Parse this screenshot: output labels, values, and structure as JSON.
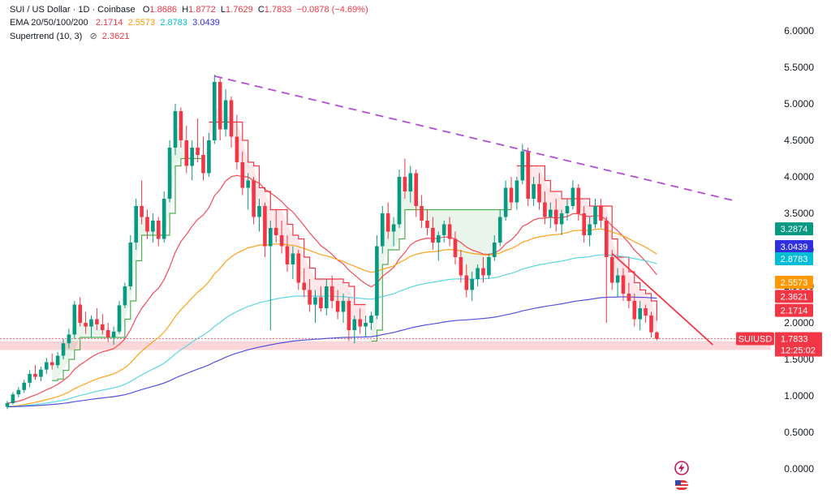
{
  "header": {
    "line1": {
      "symbol": "SUI / US Dollar · 1D · Coinbase",
      "o_label": "O",
      "o_value": "1.8686",
      "h_label": "H",
      "h_value": "1.8772",
      "l_label": "L",
      "l_value": "1.7629",
      "c_label": "C",
      "c_value": "1.7833",
      "change": "−0.0878 (−4.69%)"
    },
    "line2": {
      "label": "EMA 20/50/100/200",
      "ema20": "2.1714",
      "ema50": "2.5573",
      "ema100": "2.8783",
      "ema200": "3.0439"
    },
    "line3": {
      "label": "Supertrend (10, 3)",
      "icon": "hidden-eye-icon",
      "value": "2.3621"
    }
  },
  "colors": {
    "ema20": "#f23645",
    "ema50": "#ff9800",
    "ema100": "#4dd0e1",
    "ema200": "#3f3fd8",
    "up": "#089981",
    "down": "#f23645",
    "supertrend_up": "#4caf50",
    "supertrend_down": "#f23645",
    "trendline_dashed": "#b04fd8",
    "trendline_red": "#f23645",
    "highlight_band": "#fcd3d6"
  },
  "price_axis": {
    "ticks": [
      "6.0000",
      "5.5000",
      "5.0000",
      "4.5000",
      "4.0000",
      "3.5000",
      "3.0000",
      "2.5000",
      "2.0000",
      "1.5000",
      "1.0000",
      "0.5000",
      "0.0000"
    ]
  },
  "price_labels": [
    {
      "id": "label-3-2874",
      "text": "3.2874",
      "color": "#089981",
      "value": 3.2874
    },
    {
      "id": "label-ema200",
      "text": "3.0439",
      "color": "#2f2fe0",
      "value": 3.0439
    },
    {
      "id": "label-ema100",
      "text": "2.8783",
      "color": "#00bcd4",
      "value": 2.8783
    },
    {
      "id": "label-ema50",
      "text": "2.5573",
      "color": "#ff9800",
      "value": 2.5573
    },
    {
      "id": "label-supertrend",
      "text": "2.3621",
      "color": "#f23645",
      "value": 2.3621
    },
    {
      "id": "label-ema20",
      "text": "2.1714",
      "color": "#f23645",
      "value": 2.1714
    }
  ],
  "last_price": {
    "symbol": "SUIUSD",
    "price": "1.7833",
    "countdown": "12:25:02",
    "value": 1.7833
  },
  "bottom_icons": [
    "lightning-icon",
    "flag-icon"
  ],
  "chart_data": {
    "type": "candlestick",
    "title": "SUI / US Dollar · 1D · Coinbase",
    "ylim": [
      0,
      6
    ],
    "grid": false,
    "candles": [
      [
        0.85,
        0.93,
        0.82,
        0.9
      ],
      [
        0.9,
        1.05,
        0.88,
        1.02
      ],
      [
        1.02,
        1.12,
        0.98,
        1.08
      ],
      [
        1.08,
        1.22,
        1.04,
        1.18
      ],
      [
        1.18,
        1.35,
        1.12,
        1.3
      ],
      [
        1.3,
        1.42,
        1.22,
        1.26
      ],
      [
        1.26,
        1.4,
        1.2,
        1.36
      ],
      [
        1.36,
        1.52,
        1.3,
        1.46
      ],
      [
        1.46,
        1.58,
        1.36,
        1.42
      ],
      [
        1.42,
        1.6,
        1.38,
        1.55
      ],
      [
        1.55,
        1.78,
        1.5,
        1.72
      ],
      [
        1.72,
        1.92,
        1.65,
        1.84
      ],
      [
        1.84,
        2.3,
        1.78,
        2.25
      ],
      [
        2.25,
        2.35,
        1.95,
        2.0
      ],
      [
        2.0,
        2.15,
        1.85,
        1.95
      ],
      [
        1.95,
        2.1,
        1.8,
        2.05
      ],
      [
        2.05,
        2.2,
        1.9,
        1.98
      ],
      [
        1.98,
        2.12,
        1.84,
        1.9
      ],
      [
        1.9,
        2.0,
        1.74,
        1.8
      ],
      [
        1.8,
        1.95,
        1.7,
        1.88
      ],
      [
        1.88,
        2.3,
        1.85,
        2.24
      ],
      [
        2.24,
        2.55,
        2.2,
        2.5
      ],
      [
        2.5,
        3.2,
        2.45,
        3.1
      ],
      [
        3.1,
        3.7,
        3.0,
        3.6
      ],
      [
        3.6,
        3.95,
        3.35,
        3.45
      ],
      [
        3.45,
        3.55,
        3.15,
        3.25
      ],
      [
        3.25,
        3.5,
        3.1,
        3.4
      ],
      [
        3.4,
        3.45,
        3.05,
        3.15
      ],
      [
        3.15,
        3.8,
        3.1,
        3.7
      ],
      [
        3.7,
        4.5,
        3.65,
        4.4
      ],
      [
        4.4,
        5.0,
        4.3,
        4.9
      ],
      [
        4.9,
        4.95,
        4.4,
        4.5
      ],
      [
        4.5,
        4.7,
        4.05,
        4.15
      ],
      [
        4.15,
        4.5,
        3.95,
        4.4
      ],
      [
        4.4,
        4.8,
        4.2,
        4.3
      ],
      [
        4.3,
        4.55,
        3.95,
        4.05
      ],
      [
        4.05,
        4.6,
        4.0,
        4.5
      ],
      [
        4.5,
        5.4,
        4.45,
        5.3
      ],
      [
        5.3,
        5.35,
        4.5,
        4.65
      ],
      [
        4.65,
        5.2,
        4.55,
        5.05
      ],
      [
        5.05,
        5.1,
        4.4,
        4.55
      ],
      [
        4.55,
        4.85,
        4.1,
        4.2
      ],
      [
        4.2,
        4.35,
        3.75,
        3.85
      ],
      [
        3.85,
        4.05,
        3.55,
        3.95
      ],
      [
        3.95,
        4.0,
        3.35,
        3.45
      ],
      [
        3.45,
        3.7,
        3.25,
        3.6
      ],
      [
        3.6,
        3.65,
        2.9,
        3.05
      ],
      [
        3.05,
        3.4,
        1.9,
        3.3
      ],
      [
        3.3,
        3.55,
        3.1,
        3.2
      ],
      [
        3.2,
        3.4,
        2.95,
        3.05
      ],
      [
        3.05,
        3.2,
        2.7,
        2.8
      ],
      [
        2.8,
        3.05,
        2.6,
        2.95
      ],
      [
        2.95,
        3.0,
        2.45,
        2.55
      ],
      [
        2.55,
        2.75,
        2.35,
        2.45
      ],
      [
        2.45,
        2.6,
        2.15,
        2.25
      ],
      [
        2.25,
        2.45,
        2.0,
        2.35
      ],
      [
        2.35,
        2.5,
        2.15,
        2.2
      ],
      [
        2.2,
        2.6,
        2.1,
        2.5
      ],
      [
        2.5,
        2.65,
        2.2,
        2.3
      ],
      [
        2.3,
        2.45,
        2.05,
        2.15
      ],
      [
        2.15,
        2.4,
        2.0,
        2.3
      ],
      [
        2.3,
        2.35,
        1.75,
        1.9
      ],
      [
        1.9,
        2.1,
        1.72,
        2.05
      ],
      [
        2.05,
        2.2,
        1.85,
        1.95
      ],
      [
        1.95,
        2.1,
        1.8,
        2.0
      ],
      [
        2.0,
        2.15,
        1.9,
        2.1
      ],
      [
        2.1,
        3.2,
        2.05,
        3.05
      ],
      [
        3.05,
        3.6,
        2.95,
        3.5
      ],
      [
        3.5,
        3.65,
        3.15,
        3.25
      ],
      [
        3.25,
        3.45,
        3.05,
        3.35
      ],
      [
        3.35,
        4.1,
        3.3,
        4.0
      ],
      [
        4.0,
        4.25,
        3.7,
        3.8
      ],
      [
        3.8,
        4.15,
        3.65,
        4.05
      ],
      [
        4.05,
        4.1,
        3.45,
        3.6
      ],
      [
        3.6,
        3.75,
        3.3,
        3.4
      ],
      [
        3.4,
        3.55,
        3.2,
        3.3
      ],
      [
        3.3,
        3.45,
        3.0,
        3.1
      ],
      [
        3.1,
        3.25,
        2.85,
        3.2
      ],
      [
        3.2,
        3.4,
        3.1,
        3.35
      ],
      [
        3.35,
        3.45,
        3.05,
        3.15
      ],
      [
        3.15,
        3.25,
        2.8,
        2.9
      ],
      [
        2.9,
        3.0,
        2.55,
        2.65
      ],
      [
        2.65,
        2.8,
        2.35,
        2.45
      ],
      [
        2.45,
        2.7,
        2.3,
        2.6
      ],
      [
        2.6,
        2.8,
        2.5,
        2.75
      ],
      [
        2.75,
        2.9,
        2.55,
        2.65
      ],
      [
        2.65,
        2.95,
        2.6,
        2.9
      ],
      [
        2.9,
        3.2,
        2.85,
        3.1
      ],
      [
        3.1,
        3.55,
        3.05,
        3.45
      ],
      [
        3.45,
        3.95,
        3.4,
        3.85
      ],
      [
        3.85,
        4.0,
        3.55,
        3.65
      ],
      [
        3.65,
        4.0,
        3.55,
        3.95
      ],
      [
        3.95,
        4.45,
        3.9,
        4.35
      ],
      [
        4.35,
        4.4,
        3.6,
        3.7
      ],
      [
        3.7,
        4.0,
        3.6,
        3.9
      ],
      [
        3.9,
        4.05,
        3.55,
        3.65
      ],
      [
        3.65,
        3.8,
        3.35,
        3.45
      ],
      [
        3.45,
        3.65,
        3.3,
        3.55
      ],
      [
        3.55,
        3.7,
        3.25,
        3.35
      ],
      [
        3.35,
        3.55,
        3.2,
        3.5
      ],
      [
        3.5,
        3.7,
        3.4,
        3.6
      ],
      [
        3.6,
        3.95,
        3.55,
        3.85
      ],
      [
        3.85,
        3.9,
        3.4,
        3.5
      ],
      [
        3.5,
        3.6,
        3.1,
        3.2
      ],
      [
        3.2,
        3.45,
        3.05,
        3.35
      ],
      [
        3.35,
        3.7,
        3.3,
        3.6
      ],
      [
        3.6,
        3.7,
        3.3,
        3.4
      ],
      [
        3.4,
        3.45,
        2.0,
        2.9
      ],
      [
        2.9,
        3.0,
        2.45,
        2.55
      ],
      [
        2.55,
        2.75,
        2.35,
        2.65
      ],
      [
        2.65,
        2.75,
        2.3,
        2.4
      ],
      [
        2.4,
        2.55,
        2.2,
        2.3
      ],
      [
        2.3,
        2.4,
        1.95,
        2.05
      ],
      [
        2.05,
        2.3,
        1.9,
        2.2
      ],
      [
        2.2,
        2.25,
        2.0,
        2.1
      ],
      [
        2.1,
        2.15,
        1.8,
        1.87
      ],
      [
        1.87,
        1.88,
        1.76,
        1.78
      ]
    ],
    "supertrend": {
      "segments": [
        {
          "dir": "up",
          "start": 8,
          "end": 35
        },
        {
          "dir": "down",
          "start": 36,
          "end": 64
        },
        {
          "dir": "up",
          "start": 65,
          "end": 90
        },
        {
          "dir": "down",
          "start": 91,
          "end": 120
        }
      ]
    },
    "trendlines": [
      {
        "style": "dashed",
        "color": "#b04fd8",
        "from": {
          "i": 37,
          "price": 5.38
        },
        "to": {
          "i": 130,
          "price": 3.67
        }
      },
      {
        "style": "solid",
        "color": "#f23645",
        "from": {
          "i": 108,
          "price": 2.95
        },
        "to": {
          "i": 126,
          "price": 1.7
        }
      }
    ]
  }
}
